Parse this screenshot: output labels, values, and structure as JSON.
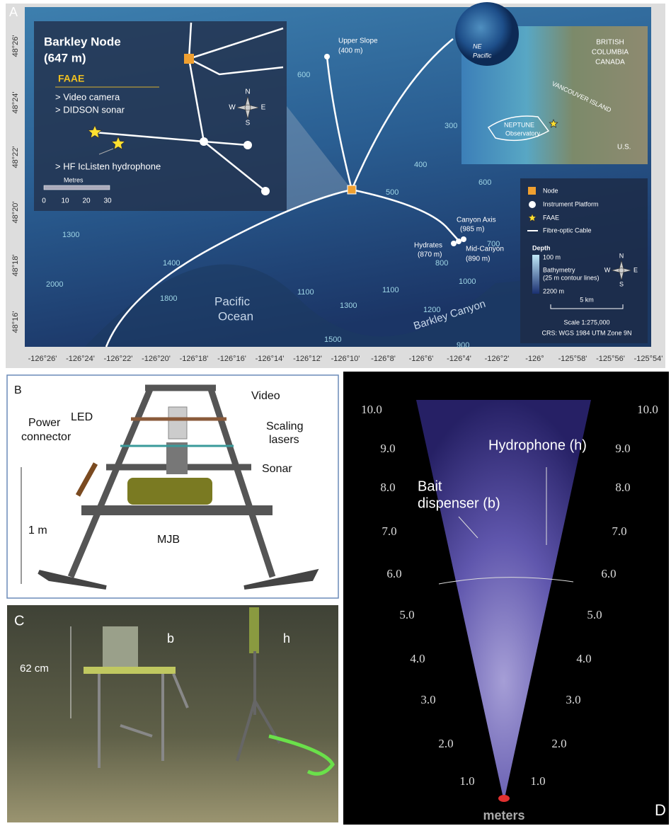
{
  "panel_a": {
    "label": "A",
    "lat_labels": [
      "48°26'",
      "48°24'",
      "48°22'",
      "48°20'",
      "48°18'",
      "48°16'"
    ],
    "lon_labels": [
      "-126°26'",
      "-126°24'",
      "-126°22'",
      "-126°20'",
      "-126°18'",
      "-126°16'",
      "-126°14'",
      "-126°12'",
      "-126°10'",
      "-126°8'",
      "-126°6'",
      "-126°4'",
      "-126°2'",
      "-126°",
      "-125°58'",
      "-125°56'",
      "-125°54'"
    ],
    "inset": {
      "title": "Barkley Node",
      "depth": "(647 m)",
      "faae": "FAAE",
      "instruments": [
        "> Video camera",
        "> DIDSON sonar",
        "> HF IcListen hydrophone"
      ],
      "scale_title": "Metres",
      "scale_ticks": [
        "0",
        "10",
        "20",
        "30"
      ]
    },
    "compass": [
      "N",
      "S",
      "W",
      "E"
    ],
    "sites": [
      {
        "name": "Upper Slope",
        "depth": "(400 m)"
      },
      {
        "name": "Canyon Axis",
        "depth": "(985 m)"
      },
      {
        "name": "Hydrates",
        "depth": "(870 m)"
      },
      {
        "name": "Mid-Canyon",
        "depth": "(890 m)"
      }
    ],
    "ocean": [
      "Pacific",
      "Ocean"
    ],
    "canyon": "Barkley Canyon",
    "contours": [
      "600",
      "300",
      "400",
      "500",
      "600",
      "700",
      "800",
      "1000",
      "1100",
      "1200",
      "1300",
      "1300",
      "1400",
      "1800",
      "2000",
      "1500",
      "1100",
      "900"
    ],
    "globe": [
      "NE",
      "Pacific"
    ],
    "locator": {
      "province": [
        "BRITISH",
        "COLUMBIA",
        "CANADA"
      ],
      "island": "VANCOUVER ISLAND",
      "observatory": [
        "NEPTUNE",
        "Observatory"
      ],
      "country": "U.S."
    },
    "legend": {
      "items": [
        "Node",
        "Instrument Platform",
        "FAAE",
        "Fibre-optic Cable"
      ],
      "depth_title": "Depth",
      "depth_top": "100 m",
      "bathymetry": [
        "Bathymetry",
        "(25 m contour lines)"
      ],
      "depth_bottom": "2200 m",
      "scale_bar": "5 km",
      "scale": "Scale 1:275,000",
      "crs": "CRS: WGS 1984 UTM Zone 9N"
    }
  },
  "panel_b": {
    "label": "B",
    "power_connector": [
      "Power",
      "connector"
    ],
    "led": "LED",
    "video": "Video",
    "lasers": [
      "Scaling",
      "lasers"
    ],
    "sonar": "Sonar",
    "mjb": "MJB",
    "scale": "1 m"
  },
  "panel_c": {
    "label": "C",
    "bait": "b",
    "hydrophone": "h",
    "scale": "62 cm"
  },
  "panel_d": {
    "label": "D",
    "ranges": [
      "10.0",
      "9.0",
      "8.0",
      "7.0",
      "6.0",
      "5.0",
      "4.0",
      "3.0",
      "2.0",
      "1.0"
    ],
    "hydrophone": "Hydrophone (h)",
    "bait": [
      "Bait",
      "dispenser (b)"
    ],
    "unit": "meters"
  }
}
